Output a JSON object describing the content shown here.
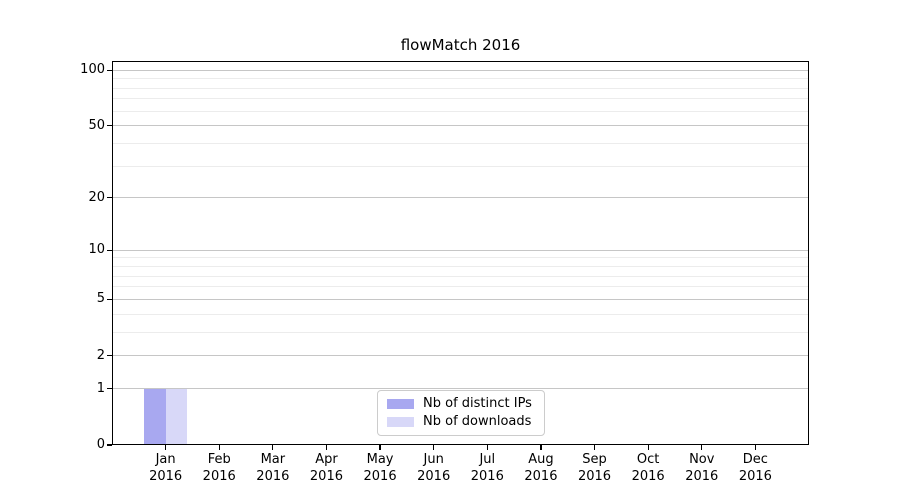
{
  "chart_data": {
    "type": "bar",
    "title": "flowMatch 2016",
    "categories": [
      "Jan 2016",
      "Feb 2016",
      "Mar 2016",
      "Apr 2016",
      "May 2016",
      "Jun 2016",
      "Jul 2016",
      "Aug 2016",
      "Sep 2016",
      "Oct 2016",
      "Nov 2016",
      "Dec 2016"
    ],
    "series": [
      {
        "name": "Nb of distinct IPs",
        "color": "#a8a8f0",
        "values": [
          1,
          0,
          0,
          0,
          0,
          0,
          0,
          0,
          0,
          0,
          0,
          0
        ]
      },
      {
        "name": "Nb of downloads",
        "color": "#d8d8f8",
        "values": [
          1,
          0,
          0,
          0,
          0,
          0,
          0,
          0,
          0,
          0,
          0,
          0
        ]
      }
    ],
    "xlabel": "",
    "ylabel": "",
    "yticks": [
      0,
      1,
      2,
      5,
      10,
      20,
      50,
      100
    ],
    "minor_yticks": [
      3,
      4,
      6,
      7,
      8,
      9,
      30,
      40,
      60,
      70,
      80,
      90
    ],
    "ylim": [
      0,
      112
    ],
    "yscale": "log1p",
    "grid": "horizontal",
    "legend_position": "lower center",
    "colors": {
      "major_grid": "#c6c6c6",
      "minor_grid": "#ececec",
      "spine": "#000000",
      "legend_border": "#cccccc",
      "background": "#ffffff"
    }
  }
}
